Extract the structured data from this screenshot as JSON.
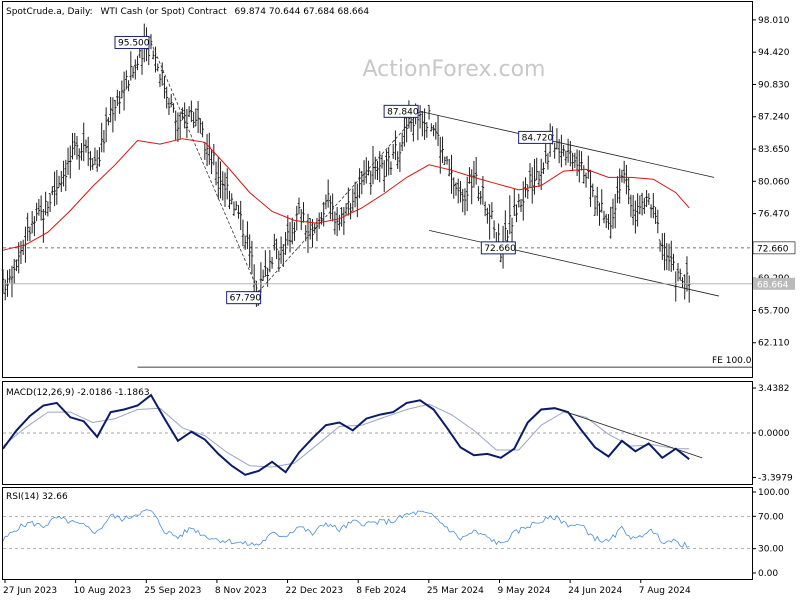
{
  "header": {
    "symbol": "SpotCrude.a, Daily:",
    "instrument": "WTI Cash (or Spot) Contract",
    "ohlc": "69.874 70.644 67.684 68.664"
  },
  "watermark": "ActionForex.com",
  "colors": {
    "price": "#1f1f1f",
    "ma": "#dd1111",
    "macd": "#0b1a6b",
    "signal": "#9aa6c8",
    "rsi": "#4a8fdc",
    "trend": "#222222",
    "grid": "#888888",
    "label_box": "#1a1f7a"
  },
  "chart_data": [
    {
      "type": "line",
      "panel": "price",
      "y_ticks": [
        "98.010",
        "94.420",
        "90.830",
        "87.240",
        "83.650",
        "80.060",
        "76.470",
        "72.880",
        "69.290",
        "65.700",
        "62.110"
      ],
      "ylim": [
        58.3,
        100.0
      ],
      "x_ticks": [
        "27 Jun 2023",
        "10 Aug 2023",
        "25 Sep 2023",
        "8 Nov 2023",
        "22 Dec 2023",
        "8 Feb 2024",
        "25 Mar 2024",
        "9 May 2024",
        "24 Jun 2024",
        "7 Aug 2024"
      ],
      "series": [
        {
          "role": "close",
          "x": [
            0,
            6,
            12,
            18,
            24,
            30,
            36,
            42,
            48,
            54,
            60,
            66,
            72,
            78,
            84,
            90,
            96,
            102,
            108,
            114,
            120,
            126,
            132,
            138,
            144,
            150,
            156,
            162,
            168,
            174,
            180,
            186,
            192,
            198,
            204,
            210,
            216,
            222,
            228,
            234,
            240,
            246,
            252,
            258,
            264,
            270,
            276,
            282,
            288,
            294,
            300,
            306
          ],
          "values": [
            68.3,
            71.5,
            74.8,
            76.7,
            79.8,
            82.4,
            84.6,
            82.1,
            88.0,
            90.6,
            93.2,
            95.5,
            90.8,
            86.2,
            87.9,
            84.2,
            81.0,
            78.5,
            74.3,
            67.8,
            71.9,
            73.0,
            76.6,
            73.6,
            78.1,
            75.7,
            78.2,
            80.2,
            80.9,
            82.5,
            86.1,
            87.8,
            86.4,
            81.7,
            78.3,
            80.4,
            77.3,
            72.7,
            76.6,
            79.3,
            81.7,
            84.7,
            83.4,
            82.5,
            77.9,
            75.2,
            80.9,
            76.5,
            78.0,
            73.3,
            69.6,
            68.7
          ]
        },
        {
          "role": "moving-average",
          "x": [
            0,
            10,
            20,
            30,
            40,
            50,
            60,
            70,
            80,
            90,
            100,
            110,
            120,
            130,
            140,
            150,
            160,
            170,
            180,
            190,
            200,
            210,
            220,
            230,
            240,
            250,
            260,
            270,
            280,
            290,
            300,
            306
          ],
          "values": [
            72.4,
            73.0,
            74.4,
            76.8,
            79.5,
            81.9,
            84.6,
            84.2,
            84.8,
            84.4,
            81.7,
            78.8,
            76.7,
            75.7,
            75.4,
            75.9,
            77.1,
            78.7,
            80.5,
            81.9,
            81.3,
            80.5,
            79.8,
            79.1,
            79.6,
            81.2,
            81.4,
            80.5,
            80.5,
            80.3,
            78.8,
            77.1
          ]
        }
      ],
      "annotations": {
        "point_labels": [
          {
            "label": "95.500",
            "x": 66,
            "y": 95.5
          },
          {
            "label": "67.790",
            "x": 114,
            "y": 67.79
          },
          {
            "label": "87.840",
            "x": 186,
            "y": 87.84
          },
          {
            "label": "84.720",
            "x": 246,
            "y": 84.72
          },
          {
            "label": "72.660",
            "x": 224,
            "y": 72.66
          }
        ],
        "level_labels": [
          "72.660",
          "68.664"
        ],
        "level_values": [
          72.66,
          68.664
        ],
        "fe_label": "FE 100.0",
        "fe_value": 59.4,
        "channel_upper": [
          [
            186,
            87.84
          ],
          [
            334,
            80.5
          ]
        ],
        "channel_lower": [
          [
            190,
            74.6
          ],
          [
            334,
            67.3
          ]
        ],
        "dashed_legs": [
          [
            [
              66,
              95.5
            ],
            [
              114,
              67.79
            ]
          ],
          [
            [
              114,
              67.79
            ],
            [
              186,
              87.84
            ]
          ]
        ]
      }
    },
    {
      "type": "line",
      "panel": "macd",
      "label": "MACD(12,26,9) -2.0186 -1.1863",
      "y_ticks": [
        "3.4382",
        "0.0000",
        "-3.3979"
      ],
      "ylim": [
        -3.9,
        3.9
      ],
      "series": [
        {
          "role": "macd",
          "x": [
            0,
            6,
            12,
            18,
            24,
            30,
            36,
            42,
            48,
            54,
            60,
            66,
            72,
            78,
            84,
            90,
            96,
            102,
            108,
            114,
            120,
            126,
            132,
            138,
            144,
            150,
            156,
            162,
            168,
            174,
            180,
            186,
            192,
            198,
            204,
            210,
            216,
            222,
            228,
            234,
            240,
            246,
            252,
            258,
            264,
            270,
            276,
            282,
            288,
            294,
            300,
            306
          ],
          "values": [
            -1.2,
            0.2,
            1.3,
            2.1,
            2.3,
            1.2,
            0.9,
            -0.3,
            1.6,
            1.8,
            2.1,
            2.9,
            1.1,
            -0.6,
            0.1,
            -0.5,
            -1.6,
            -2.5,
            -3.2,
            -2.9,
            -2.2,
            -3.0,
            -1.5,
            -0.4,
            0.6,
            0.8,
            0.2,
            1.1,
            1.4,
            1.6,
            2.3,
            2.5,
            1.8,
            0.4,
            -1.1,
            -1.7,
            -1.6,
            -1.9,
            -1.2,
            0.8,
            1.8,
            1.9,
            1.6,
            0.2,
            -1.1,
            -1.8,
            -0.6,
            -1.4,
            -0.8,
            -1.9,
            -1.2,
            -2.0
          ]
        },
        {
          "role": "signal",
          "x": [
            0,
            10,
            20,
            30,
            40,
            50,
            60,
            70,
            80,
            90,
            100,
            110,
            120,
            130,
            140,
            150,
            160,
            170,
            180,
            190,
            200,
            210,
            220,
            230,
            240,
            250,
            260,
            270,
            280,
            290,
            300,
            306
          ],
          "values": [
            -1.0,
            0.4,
            1.6,
            1.6,
            0.8,
            1.1,
            1.8,
            1.9,
            0.4,
            -0.2,
            -1.5,
            -2.5,
            -2.6,
            -2.3,
            -0.9,
            0.5,
            0.6,
            1.2,
            1.8,
            2.2,
            1.4,
            0.2,
            -1.3,
            -1.3,
            0.6,
            1.6,
            1.2,
            -0.1,
            -1.0,
            -0.9,
            -1.2,
            -1.2
          ]
        }
      ],
      "trendline": [
        [
          246,
          1.9
        ],
        [
          310,
          -1.9
        ]
      ]
    },
    {
      "type": "line",
      "panel": "rsi",
      "label": "RSI(14) 32.66",
      "y_ticks": [
        "100.00",
        "70.00",
        "30.00",
        "0.00"
      ],
      "ylim": [
        0,
        100
      ],
      "levels": [
        70,
        30
      ],
      "series": [
        {
          "role": "rsi",
          "x": [
            0,
            6,
            12,
            18,
            24,
            30,
            36,
            42,
            48,
            54,
            60,
            66,
            72,
            78,
            84,
            90,
            96,
            102,
            108,
            114,
            120,
            126,
            132,
            138,
            144,
            150,
            156,
            162,
            168,
            174,
            180,
            186,
            192,
            198,
            204,
            210,
            216,
            222,
            228,
            234,
            240,
            246,
            252,
            258,
            264,
            270,
            276,
            282,
            288,
            294,
            300,
            306
          ],
          "values": [
            40,
            55,
            62,
            58,
            68,
            63,
            58,
            50,
            71,
            66,
            74,
            77,
            52,
            44,
            56,
            46,
            41,
            39,
            36,
            35,
            48,
            46,
            58,
            48,
            62,
            53,
            63,
            61,
            63,
            64,
            72,
            75,
            70,
            56,
            42,
            51,
            44,
            35,
            49,
            58,
            64,
            69,
            60,
            58,
            43,
            38,
            55,
            40,
            54,
            40,
            38,
            32.7
          ]
        }
      ]
    }
  ]
}
